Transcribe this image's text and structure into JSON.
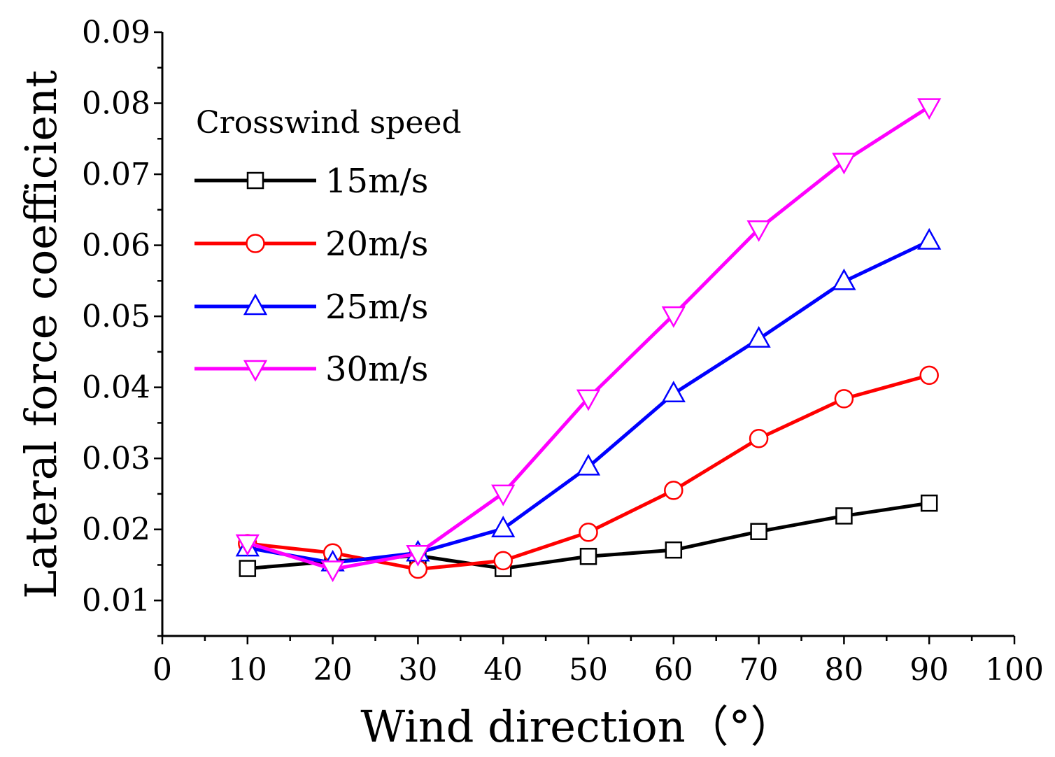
{
  "chart_data": {
    "type": "line",
    "title": "",
    "xlabel": "Wind direction（°）",
    "ylabel": "Lateral force coefficient",
    "xlim": [
      0,
      100
    ],
    "ylim": [
      0.005,
      0.09
    ],
    "x_ticks": [
      0,
      10,
      20,
      30,
      40,
      50,
      60,
      70,
      80,
      90,
      100
    ],
    "x_tick_labels": [
      "0",
      "10",
      "20",
      "30",
      "40",
      "50",
      "60",
      "70",
      "80",
      "90",
      "100"
    ],
    "y_ticks": [
      0.01,
      0.02,
      0.03,
      0.04,
      0.05,
      0.06,
      0.07,
      0.08,
      0.09
    ],
    "y_tick_labels": [
      "0.01",
      "0.02",
      "0.03",
      "0.04",
      "0.05",
      "0.06",
      "0.07",
      "0.08",
      "0.09"
    ],
    "grid": false,
    "legend": {
      "title": "Crosswind speed",
      "position": "upper-left"
    },
    "x": [
      10,
      20,
      30,
      40,
      50,
      60,
      70,
      80,
      90
    ],
    "series": [
      {
        "name": "15m/s",
        "color": "#000000",
        "marker": "square",
        "values": [
          0.0145,
          0.0155,
          0.0163,
          0.0145,
          0.0162,
          0.0171,
          0.0197,
          0.0219,
          0.0237
        ]
      },
      {
        "name": "20m/s",
        "color": "#ff0000",
        "marker": "circle",
        "values": [
          0.018,
          0.0167,
          0.0144,
          0.0156,
          0.0196,
          0.0255,
          0.0328,
          0.0384,
          0.0417
        ]
      },
      {
        "name": "25m/s",
        "color": "#0000ff",
        "marker": "triangle-up",
        "values": [
          0.0174,
          0.0153,
          0.0167,
          0.0201,
          0.0288,
          0.0391,
          0.0468,
          0.0549,
          0.0606
        ]
      },
      {
        "name": "30m/s",
        "color": "#ff00ff",
        "marker": "triangle-down",
        "values": [
          0.0181,
          0.0144,
          0.0166,
          0.0251,
          0.0385,
          0.0502,
          0.0623,
          0.0718,
          0.0795
        ]
      }
    ]
  }
}
